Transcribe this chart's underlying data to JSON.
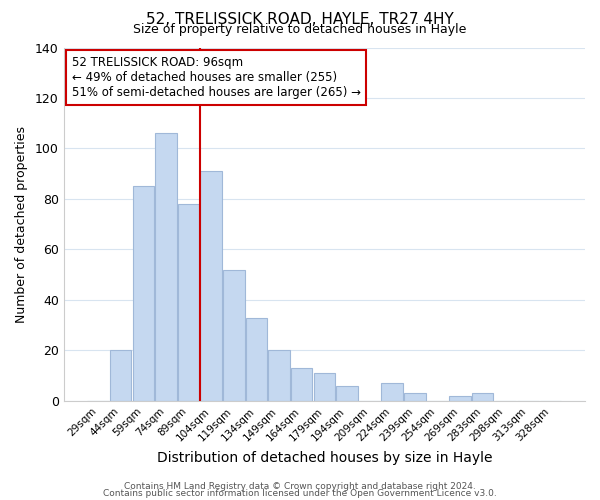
{
  "title": "52, TRELISSICK ROAD, HAYLE, TR27 4HY",
  "subtitle": "Size of property relative to detached houses in Hayle",
  "xlabel": "Distribution of detached houses by size in Hayle",
  "ylabel": "Number of detached properties",
  "bar_labels": [
    "29sqm",
    "44sqm",
    "59sqm",
    "74sqm",
    "89sqm",
    "104sqm",
    "119sqm",
    "134sqm",
    "149sqm",
    "164sqm",
    "179sqm",
    "194sqm",
    "209sqm",
    "224sqm",
    "239sqm",
    "254sqm",
    "269sqm",
    "283sqm",
    "298sqm",
    "313sqm",
    "328sqm"
  ],
  "bar_values": [
    0,
    20,
    85,
    106,
    78,
    91,
    52,
    33,
    20,
    13,
    11,
    6,
    0,
    7,
    3,
    0,
    2,
    3,
    0,
    0,
    0
  ],
  "bar_color": "#c5d8f0",
  "bar_edge_color": "#a0b8d8",
  "vline_x": 4.5,
  "vline_color": "#cc0000",
  "annotation_text": "52 TRELISSICK ROAD: 96sqm\n← 49% of detached houses are smaller (255)\n51% of semi-detached houses are larger (265) →",
  "annotation_box_color": "#ffffff",
  "annotation_box_edge": "#cc0000",
  "ylim": [
    0,
    140
  ],
  "yticks": [
    0,
    20,
    40,
    60,
    80,
    100,
    120,
    140
  ],
  "footer_line1": "Contains HM Land Registry data © Crown copyright and database right 2024.",
  "footer_line2": "Contains public sector information licensed under the Open Government Licence v3.0.",
  "bg_color": "#ffffff",
  "grid_color": "#d8e4f0"
}
